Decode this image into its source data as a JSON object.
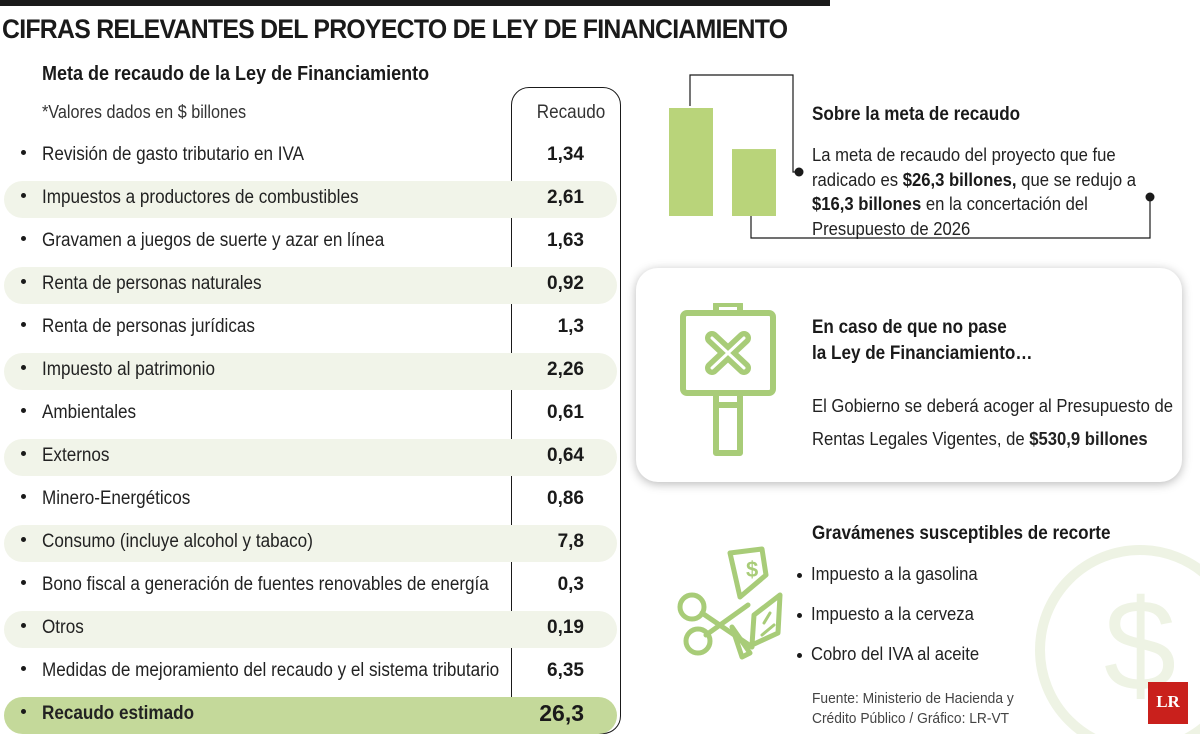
{
  "title": "CIFRAS RELEVANTES DEL PROYECTO DE LEY DE FINANCIAMIENTO",
  "table": {
    "subtitle": "Meta de recaudo de la Ley de Financiamiento",
    "note": "*Valores dados en $ billones",
    "column_header": "Recaudo",
    "rows": [
      {
        "label": "Revisión de gasto tributario en IVA",
        "value": "1,34"
      },
      {
        "label": "Impuestos a productores de combustibles",
        "value": "2,61"
      },
      {
        "label": "Gravamen a juegos de suerte y azar en línea",
        "value": "1,63"
      },
      {
        "label": "Renta de personas naturales",
        "value": "0,92"
      },
      {
        "label": "Renta de personas jurídicas",
        "value": "1,3"
      },
      {
        "label": "Impuesto al patrimonio",
        "value": "2,26"
      },
      {
        "label": "Ambientales",
        "value": "0,61"
      },
      {
        "label": "Externos",
        "value": "0,64"
      },
      {
        "label": "Minero-Energéticos",
        "value": "0,86"
      },
      {
        "label": "Consumo (incluye alcohol y tabaco)",
        "value": "7,8"
      },
      {
        "label": "Bono fiscal a generación de fuentes renovables de energía",
        "value": "0,3"
      },
      {
        "label": "Otros",
        "value": "0,19"
      },
      {
        "label": "Medidas de mejoramiento del recaudo y el sistema tributario",
        "value": "6,35"
      }
    ],
    "total": {
      "label": "Recaudo estimado",
      "value": "26,3"
    }
  },
  "meta": {
    "title": "Sobre la meta de recaudo",
    "text_1": "La meta de recaudo del proyecto que fue radicado es",
    "value_original": "$26,3 billones,",
    "text_2": " que se redujo a ",
    "value_reduced": "$16,3 billones",
    "text_3": " en la concertación del Presupuesto de 2026",
    "bar_values": [
      26.3,
      16.3
    ]
  },
  "fallback": {
    "title_line1": "En caso de que no pase",
    "title_line2": "la Ley de Financiamiento…",
    "text_line1": "El Gobierno se deberá acoger al Presupuesto de",
    "text_line2": "Rentas Legales Vigentes, de ",
    "value": "$530,9 billones"
  },
  "cuts": {
    "title": "Gravámenes susceptibles de recorte",
    "items": [
      "Impuesto a la gasolina",
      "Impuesto a la cerveza",
      "Cobro del IVA al aceite"
    ]
  },
  "source": {
    "line1": "Fuente: Ministerio de Hacienda y",
    "line2": "Crédito Público / Gráfico: LR-VT"
  },
  "logo_text": "LR",
  "colors": {
    "accent_green": "#b9d47a",
    "row_shade": "#f1f4e9",
    "total_row": "#c4d99a",
    "icon_green": "#a8cc78",
    "logo_red": "#c9201c"
  },
  "icons": [
    "sign-x-icon",
    "scissors-money-icon",
    "dollar-watermark-icon"
  ]
}
